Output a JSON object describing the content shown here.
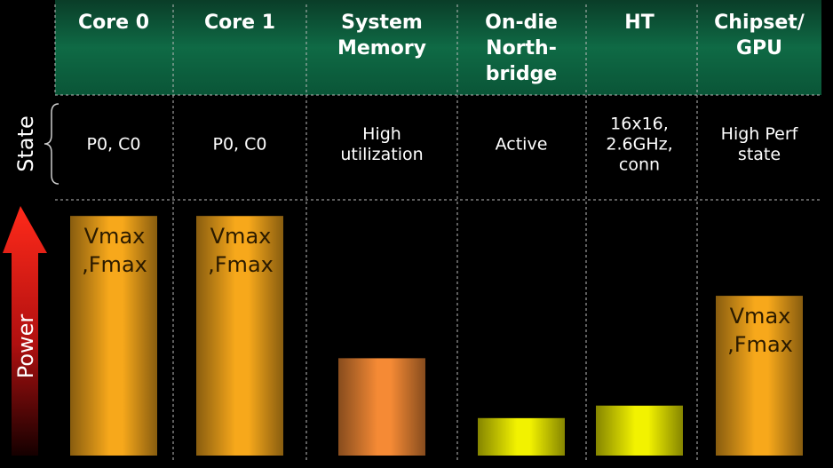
{
  "chart_data": {
    "type": "bar",
    "categories": [
      [
        "Core 0"
      ],
      [
        "Core 1"
      ],
      [
        "System",
        "Memory"
      ],
      [
        "On-die",
        "North-",
        "bridge"
      ],
      [
        "HT"
      ],
      [
        "Chipset/",
        "GPU"
      ]
    ],
    "states": [
      [
        "P0, C0"
      ],
      [
        "P0, C0"
      ],
      [
        "High",
        "utilization"
      ],
      [
        "Active"
      ],
      [
        "16x16,",
        "2.6GHz,",
        "conn"
      ],
      [
        "High Perf",
        "state"
      ]
    ],
    "state_label": "State",
    "value_label": "Power",
    "values": [
      96,
      96,
      39,
      15,
      20,
      64
    ],
    "bar_labels": [
      [
        "Vmax",
        ",Fmax"
      ],
      [
        "Vmax",
        ",Fmax"
      ],
      null,
      null,
      null,
      [
        "Vmax",
        ",Fmax"
      ]
    ],
    "colors": [
      "#f7a81b",
      "#f7a81b",
      "#f58a35",
      "#f2f200",
      "#f2f200",
      "#f7a81b"
    ],
    "ylim": [
      0,
      100
    ]
  }
}
